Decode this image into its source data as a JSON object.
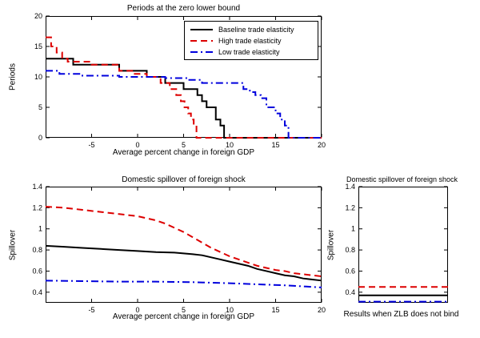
{
  "figure": {
    "background": "#ffffff"
  },
  "colors": {
    "baseline": "#000000",
    "high": "#dd0000",
    "low": "#0000dd"
  },
  "chart_data": "see charts",
  "charts": [
    {
      "name": "zlb-periods",
      "type": "line",
      "title": "Periods at the zero lower bound",
      "xlabel": "Average percent change in foreign GDP",
      "ylabel": "Periods",
      "xlim": [
        -10,
        20
      ],
      "ylim": [
        0,
        20
      ],
      "xticks": [
        -5,
        0,
        5,
        10,
        15,
        20
      ],
      "yticks": [
        0,
        5,
        10,
        15,
        20
      ],
      "grid": false,
      "legend_position": "top-right",
      "series": [
        {
          "name": "Baseline trade elasticity",
          "color": "#000000",
          "dash": "solid",
          "step": true,
          "x": [
            -10,
            -7,
            -2,
            1,
            3,
            5,
            6.5,
            7,
            7.5,
            8.5,
            9,
            9.4,
            20
          ],
          "y": [
            13,
            12,
            11,
            10,
            9,
            8,
            7,
            6,
            5,
            3,
            2,
            0,
            0
          ]
        },
        {
          "name": "High trade elasticity",
          "color": "#dd0000",
          "dash": "dashed",
          "step": true,
          "x": [
            -10,
            -9.4,
            -8.8,
            -8.2,
            -7.6,
            -5,
            -2,
            -0.5,
            1,
            2.5,
            3.5,
            4.2,
            4.7,
            5.1,
            5.5,
            5.8,
            6.1,
            6.4,
            20
          ],
          "y": [
            16.5,
            15,
            14,
            13,
            12.5,
            12,
            11,
            10.5,
            10,
            9,
            8,
            7,
            6,
            5,
            4,
            3,
            2,
            0,
            0
          ]
        },
        {
          "name": "Low trade elasticity",
          "color": "#0000dd",
          "dash": "dashdot",
          "step": true,
          "x": [
            -10,
            -8.5,
            -6,
            -2,
            3,
            5.5,
            7,
            11.5,
            12.2,
            12.8,
            13.4,
            14,
            15,
            15.5,
            16,
            16.4,
            20
          ],
          "y": [
            11,
            10.5,
            10.2,
            10,
            9.8,
            9.5,
            9,
            8,
            7.5,
            7,
            6.5,
            5,
            4,
            3,
            2,
            0,
            0
          ]
        }
      ]
    },
    {
      "name": "spillover-zlb",
      "type": "line",
      "title": "Domestic spillover of foreign shock",
      "xlabel": "Average percent change in foreign GDP",
      "ylabel": "Spillover",
      "xlim": [
        -10,
        20
      ],
      "ylim": [
        0.3,
        1.4
      ],
      "xticks": [
        -5,
        0,
        5,
        10,
        15,
        20
      ],
      "yticks": [
        0.4,
        0.6,
        0.8,
        1,
        1.2,
        1.4
      ],
      "grid": false,
      "series": [
        {
          "name": "Baseline trade elasticity",
          "color": "#000000",
          "dash": "solid",
          "step": false,
          "x": [
            -10,
            -8,
            -6,
            -4,
            -2,
            0,
            2,
            4,
            6,
            7,
            8,
            9,
            10,
            11,
            12,
            13,
            14,
            15,
            16,
            17,
            18,
            19,
            20
          ],
          "y": [
            0.84,
            0.83,
            0.82,
            0.81,
            0.8,
            0.79,
            0.78,
            0.775,
            0.76,
            0.75,
            0.73,
            0.71,
            0.69,
            0.67,
            0.65,
            0.62,
            0.6,
            0.58,
            0.56,
            0.55,
            0.53,
            0.52,
            0.51
          ]
        },
        {
          "name": "High trade elasticity",
          "color": "#dd0000",
          "dash": "dashed",
          "step": false,
          "x": [
            -10,
            -8,
            -6,
            -4,
            -2,
            0,
            2,
            3,
            4,
            5,
            6,
            7,
            8,
            9,
            10,
            11,
            12,
            13,
            14,
            15,
            16,
            17,
            18,
            19,
            20
          ],
          "y": [
            1.21,
            1.2,
            1.18,
            1.16,
            1.14,
            1.12,
            1.08,
            1.05,
            1.01,
            0.97,
            0.92,
            0.87,
            0.82,
            0.78,
            0.74,
            0.71,
            0.68,
            0.65,
            0.63,
            0.61,
            0.6,
            0.58,
            0.57,
            0.56,
            0.55
          ]
        },
        {
          "name": "Low trade elasticity",
          "color": "#0000dd",
          "dash": "dashdot",
          "step": false,
          "x": [
            -10,
            -6,
            -2,
            2,
            6,
            10,
            13,
            16,
            18,
            20
          ],
          "y": [
            0.51,
            0.505,
            0.5,
            0.5,
            0.495,
            0.485,
            0.475,
            0.465,
            0.455,
            0.445
          ]
        }
      ]
    },
    {
      "name": "spillover-no-zlb",
      "type": "line",
      "title": "Domestic spillover of foreign shock",
      "xlabel": "Results when ZLB does not bind",
      "ylabel": "Spillover",
      "xlim": [
        0,
        1
      ],
      "ylim": [
        0.3,
        1.4
      ],
      "xticks": [],
      "yticks": [
        0.4,
        0.6,
        0.8,
        1,
        1.2,
        1.4
      ],
      "grid": false,
      "series": [
        {
          "name": "Baseline trade elasticity",
          "color": "#000000",
          "dash": "solid",
          "step": false,
          "x": [
            0,
            1
          ],
          "y": [
            0.37,
            0.37
          ]
        },
        {
          "name": "High trade elasticity",
          "color": "#dd0000",
          "dash": "dashed",
          "step": false,
          "x": [
            0,
            1
          ],
          "y": [
            0.45,
            0.45
          ]
        },
        {
          "name": "Low trade elasticity",
          "color": "#0000dd",
          "dash": "dashdot",
          "step": false,
          "x": [
            0,
            1
          ],
          "y": [
            0.31,
            0.31
          ]
        }
      ]
    }
  ]
}
